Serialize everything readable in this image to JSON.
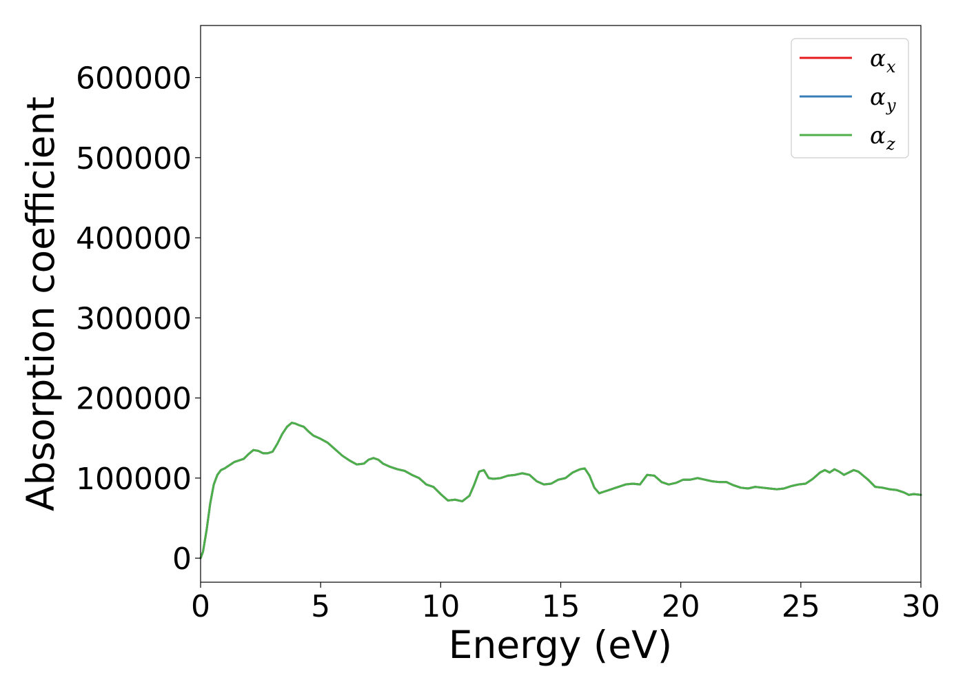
{
  "chart_data": {
    "type": "line",
    "title": "",
    "xlabel": "Energy (eV)",
    "ylabel": "Absorption coefficient",
    "xlim": [
      0,
      30
    ],
    "ylim": [
      -30000,
      665000
    ],
    "xticks": [
      0,
      5,
      10,
      15,
      20,
      25,
      30
    ],
    "xtick_labels": [
      "0",
      "5",
      "10",
      "15",
      "20",
      "25",
      "30"
    ],
    "yticks": [
      0,
      100000,
      200000,
      300000,
      400000,
      500000,
      600000
    ],
    "ytick_labels": [
      "0",
      "100000",
      "200000",
      "300000",
      "400000",
      "500000",
      "600000"
    ],
    "grid": false,
    "legend_position": "top-right",
    "x": [
      0,
      0.1,
      0.25,
      0.4,
      0.55,
      0.7,
      0.85,
      1.0,
      1.2,
      1.4,
      1.6,
      1.8,
      2.0,
      2.2,
      2.4,
      2.6,
      2.8,
      3.0,
      3.2,
      3.4,
      3.6,
      3.8,
      3.95,
      4.1,
      4.3,
      4.5,
      4.7,
      5.0,
      5.3,
      5.6,
      5.9,
      6.2,
      6.5,
      6.8,
      7.0,
      7.2,
      7.4,
      7.6,
      7.9,
      8.2,
      8.5,
      8.8,
      9.1,
      9.4,
      9.7,
      10.0,
      10.3,
      10.6,
      10.9,
      11.2,
      11.4,
      11.6,
      11.8,
      12.0,
      12.2,
      12.5,
      12.8,
      13.1,
      13.4,
      13.7,
      14.0,
      14.3,
      14.6,
      14.9,
      15.2,
      15.5,
      15.8,
      16.0,
      16.2,
      16.4,
      16.6,
      16.8,
      17.1,
      17.4,
      17.7,
      18.0,
      18.3,
      18.6,
      18.9,
      19.2,
      19.5,
      19.8,
      20.1,
      20.4,
      20.7,
      21.0,
      21.3,
      21.6,
      21.9,
      22.2,
      22.5,
      22.8,
      23.1,
      23.4,
      23.7,
      24.0,
      24.3,
      24.6,
      24.9,
      25.2,
      25.5,
      25.8,
      26.0,
      26.2,
      26.4,
      26.6,
      26.8,
      27.0,
      27.2,
      27.4,
      27.6,
      27.8,
      28.1,
      28.4,
      28.7,
      29.0,
      29.3,
      29.5,
      29.7,
      30.0
    ],
    "series": [
      {
        "name": "α_x",
        "color": "#e41a1c",
        "values": [
          0,
          8000,
          35000,
          68000,
          92000,
          104000,
          110000,
          112000,
          116000,
          120000,
          122000,
          124000,
          130000,
          135000,
          134000,
          131000,
          131000,
          133000,
          143000,
          155000,
          164000,
          169000,
          168000,
          166000,
          164000,
          158000,
          153000,
          149000,
          144000,
          136000,
          128000,
          122000,
          117000,
          118000,
          123000,
          125000,
          123000,
          118000,
          114000,
          111000,
          109000,
          104000,
          100000,
          92000,
          89000,
          80000,
          72000,
          73000,
          71000,
          78000,
          92000,
          108000,
          110000,
          100000,
          99000,
          100000,
          103000,
          104000,
          106000,
          104000,
          96000,
          92000,
          93000,
          98000,
          100000,
          107000,
          111000,
          112000,
          103000,
          88000,
          81000,
          83000,
          86000,
          89000,
          92000,
          93000,
          92000,
          104000,
          103000,
          95000,
          92000,
          94000,
          98000,
          98000,
          100000,
          98000,
          96000,
          95000,
          95000,
          91000,
          88000,
          87000,
          89000,
          88000,
          87000,
          86000,
          87000,
          90000,
          92000,
          93000,
          99000,
          107000,
          110000,
          107000,
          111000,
          108000,
          104000,
          107000,
          110000,
          108000,
          103000,
          98000,
          89000,
          88000,
          86000,
          85000,
          82000,
          79000,
          80000,
          79000
        ]
      },
      {
        "name": "α_y",
        "color": "#377eb8",
        "values": [
          0,
          8000,
          35000,
          68000,
          92000,
          104000,
          110000,
          112000,
          116000,
          120000,
          122000,
          124000,
          130000,
          135000,
          134000,
          131000,
          131000,
          133000,
          143000,
          155000,
          164000,
          169000,
          168000,
          166000,
          164000,
          158000,
          153000,
          149000,
          144000,
          136000,
          128000,
          122000,
          117000,
          118000,
          123000,
          125000,
          123000,
          118000,
          114000,
          111000,
          109000,
          104000,
          100000,
          92000,
          89000,
          80000,
          72000,
          73000,
          71000,
          78000,
          92000,
          108000,
          110000,
          100000,
          99000,
          100000,
          103000,
          104000,
          106000,
          104000,
          96000,
          92000,
          93000,
          98000,
          100000,
          107000,
          111000,
          112000,
          103000,
          88000,
          81000,
          83000,
          86000,
          89000,
          92000,
          93000,
          92000,
          104000,
          103000,
          95000,
          92000,
          94000,
          98000,
          98000,
          100000,
          98000,
          96000,
          95000,
          95000,
          91000,
          88000,
          87000,
          89000,
          88000,
          87000,
          86000,
          87000,
          90000,
          92000,
          93000,
          99000,
          107000,
          110000,
          107000,
          111000,
          108000,
          104000,
          107000,
          110000,
          108000,
          103000,
          98000,
          89000,
          88000,
          86000,
          85000,
          82000,
          79000,
          80000,
          79000
        ]
      },
      {
        "name": "α_z",
        "color": "#4daf4a",
        "values": [
          0,
          8000,
          35000,
          68000,
          92000,
          104000,
          110000,
          112000,
          116000,
          120000,
          122000,
          124000,
          130000,
          135000,
          134000,
          131000,
          131000,
          133000,
          143000,
          155000,
          164000,
          169000,
          168000,
          166000,
          164000,
          158000,
          153000,
          149000,
          144000,
          136000,
          128000,
          122000,
          117000,
          118000,
          123000,
          125000,
          123000,
          118000,
          114000,
          111000,
          109000,
          104000,
          100000,
          92000,
          89000,
          80000,
          72000,
          73000,
          71000,
          78000,
          92000,
          108000,
          110000,
          100000,
          99000,
          100000,
          103000,
          104000,
          106000,
          104000,
          96000,
          92000,
          93000,
          98000,
          100000,
          107000,
          111000,
          112000,
          103000,
          88000,
          81000,
          83000,
          86000,
          89000,
          92000,
          93000,
          92000,
          104000,
          103000,
          95000,
          92000,
          94000,
          98000,
          98000,
          100000,
          98000,
          96000,
          95000,
          95000,
          91000,
          88000,
          87000,
          89000,
          88000,
          87000,
          86000,
          87000,
          90000,
          92000,
          93000,
          99000,
          107000,
          110000,
          107000,
          111000,
          108000,
          104000,
          107000,
          110000,
          108000,
          103000,
          98000,
          89000,
          88000,
          86000,
          85000,
          82000,
          79000,
          80000,
          79000
        ]
      }
    ],
    "legend": [
      {
        "symbol": "α",
        "subscript": "x",
        "color": "#e41a1c"
      },
      {
        "symbol": "α",
        "subscript": "y",
        "color": "#377eb8"
      },
      {
        "symbol": "α",
        "subscript": "z",
        "color": "#4daf4a"
      }
    ]
  }
}
